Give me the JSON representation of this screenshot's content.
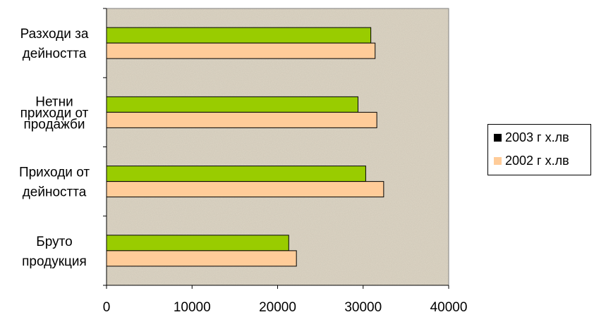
{
  "chart_data": {
    "type": "bar",
    "orientation": "horizontal",
    "categories": [
      [
        "Бруто",
        "продукция"
      ],
      [
        "Приходи от",
        "дейността"
      ],
      [
        "Нетни",
        "приходи от",
        "продажби"
      ],
      [
        "Разходи за",
        "дейността"
      ]
    ],
    "series": [
      {
        "name": "2003 г х.лв",
        "color": "#99cc00",
        "values": [
          21300,
          30300,
          29400,
          30900
        ]
      },
      {
        "name": "2002 г х.лв",
        "color": "#ffcc99",
        "values": [
          22200,
          32400,
          31600,
          31400
        ]
      }
    ],
    "xlim": [
      0,
      40000
    ],
    "xticks": [
      "0",
      "10000",
      "20000",
      "30000",
      "40000"
    ],
    "legend_position": "right",
    "legend_swatch_colors": [
      "#000000",
      "#ffcc99"
    ],
    "plot_background": "#ddd5c4",
    "grid": false
  }
}
